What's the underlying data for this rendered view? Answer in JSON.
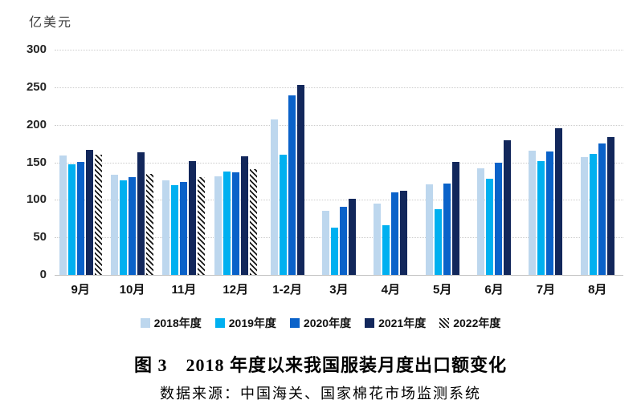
{
  "chart": {
    "unit_label": "亿美元",
    "y_ticks": [
      300,
      250,
      200,
      150,
      100,
      50,
      0
    ]
  },
  "chart_data": {
    "type": "bar",
    "title": "图3 2018年度以来我国服装月度出口额变化",
    "xlabel": "",
    "ylabel": "亿美元",
    "ylim": [
      0,
      300
    ],
    "grid": "horizontal-dotted",
    "legend_position": "bottom",
    "categories": [
      "9月",
      "10月",
      "11月",
      "12月",
      "1-2月",
      "3月",
      "4月",
      "5月",
      "6月",
      "7月",
      "8月"
    ],
    "series": [
      {
        "name": "2018年度",
        "color": "#BDD7EE",
        "pattern": "solid",
        "values": [
          159,
          134,
          126,
          131,
          207,
          85,
          95,
          121,
          142,
          166,
          157
        ]
      },
      {
        "name": "2019年度",
        "color": "#00B0F0",
        "pattern": "solid",
        "values": [
          147,
          126,
          120,
          138,
          160,
          63,
          66,
          88,
          128,
          152,
          161
        ]
      },
      {
        "name": "2020年度",
        "color": "#0A62C9",
        "pattern": "solid",
        "values": [
          151,
          130,
          124,
          137,
          239,
          91,
          110,
          122,
          150,
          164,
          175
        ]
      },
      {
        "name": "2021年度",
        "color": "#12275B",
        "pattern": "solid",
        "values": [
          167,
          163,
          152,
          158,
          253,
          101,
          112,
          151,
          179,
          195,
          184
        ]
      },
      {
        "name": "2022年度",
        "color": "#151515",
        "pattern": "diagonal-hatch",
        "values": [
          160,
          135,
          130,
          141,
          null,
          null,
          null,
          null,
          null,
          null,
          null
        ]
      }
    ]
  },
  "caption": {
    "title": "图 3　2018 年度以来我国服装月度出口额变化",
    "source": "数据来源：中国海关、国家棉花市场监测系统"
  }
}
